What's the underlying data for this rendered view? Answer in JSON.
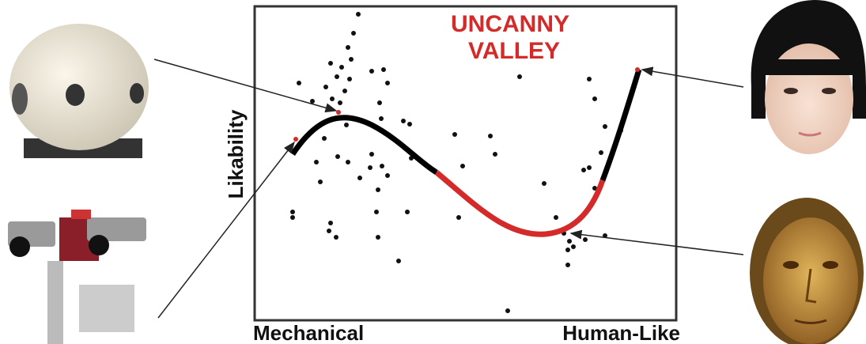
{
  "figure": {
    "title_lines": [
      "UNCANNY",
      "VALLEY"
    ],
    "y_axis_label": "Likability",
    "x_axis_left_label": "Mechanical",
    "x_axis_right_label": "Human-Like"
  }
}
